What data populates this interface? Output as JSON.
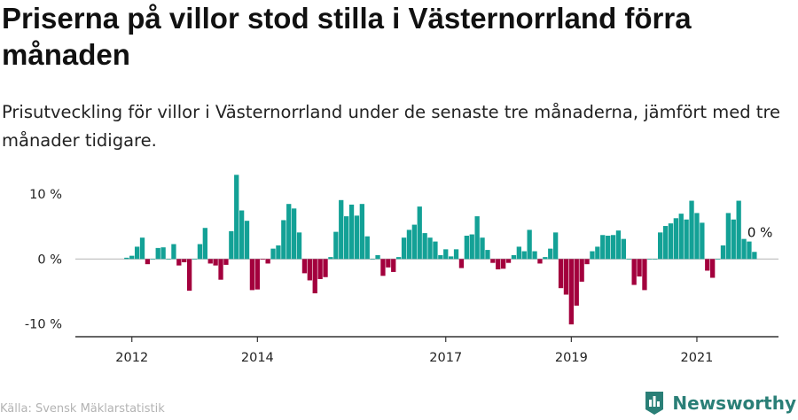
{
  "title": "Priserna på villor stod stilla i Västernorrland förra månaden",
  "subtitle": "Prisutveckling för villor i Västernorrland under de senaste tre månaderna, jämfört med tre månader tidigare.",
  "source": "Källa: Svensk Mäklarstatistik",
  "brand": {
    "name": "Newsworthy"
  },
  "colors": {
    "positive": "#13a196",
    "negative": "#a3003d",
    "axis": "#333333",
    "zero_line": "#bbbbbb"
  },
  "chart_data": {
    "type": "bar",
    "title": "Priserna på villor stod stilla i Västernorrland förra månaden",
    "xlabel": "",
    "ylabel": "",
    "ylim": [
      -12,
      14
    ],
    "y_ticks": [
      {
        "value": 10,
        "label": "10 %"
      },
      {
        "value": 0,
        "label": "0 %"
      },
      {
        "value": -10,
        "label": "-10 %"
      }
    ],
    "x_range": [
      2011.1,
      2022.3
    ],
    "x_ticks": [
      {
        "value": 2012,
        "label": "2012"
      },
      {
        "value": 2014,
        "label": "2014"
      },
      {
        "value": 2017,
        "label": "2017"
      },
      {
        "value": 2019,
        "label": "2019"
      },
      {
        "value": 2021,
        "label": "2021"
      }
    ],
    "start": {
      "year": 2011,
      "month": 12
    },
    "values": [
      0.2,
      0.5,
      1.9,
      3.3,
      -0.8,
      0,
      1.7,
      1.8,
      0,
      2.3,
      -1,
      -0.5,
      -4.9,
      0,
      2.3,
      4.8,
      -0.7,
      -1,
      -3.2,
      -0.9,
      4.3,
      13,
      7.5,
      5.9,
      -4.8,
      -4.7,
      -0.1,
      -0.7,
      1.6,
      2.1,
      6,
      8.5,
      7.8,
      4.1,
      -2.2,
      -3.3,
      -5.3,
      -3.1,
      -2.8,
      0.3,
      4.2,
      9.1,
      6.6,
      8.4,
      6.7,
      8.5,
      3.5,
      0,
      0.6,
      -2.6,
      -1.3,
      -2,
      0.3,
      3.3,
      4.5,
      5.3,
      8.1,
      4,
      3.3,
      2.7,
      0.6,
      1.5,
      0.4,
      1.5,
      -1.4,
      3.6,
      3.8,
      6.6,
      3.3,
      1.4,
      -0.6,
      -1.6,
      -1.5,
      -0.6,
      0.6,
      1.9,
      1.2,
      4.5,
      1.2,
      -0.7,
      0.3,
      1.6,
      4.1,
      -4.5,
      -5.5,
      -10.1,
      -7.2,
      -3.5,
      -0.8,
      1.2,
      1.9,
      3.7,
      3.6,
      3.7,
      4.4,
      3.1,
      0,
      -4,
      -2.7,
      -4.8,
      0,
      0,
      4.1,
      5.1,
      5.5,
      6.3,
      7,
      6.1,
      9,
      7.1,
      5.6,
      -1.8,
      -2.9,
      0,
      2.1,
      7.1,
      6.1,
      9,
      3.1,
      2.7,
      1.1
    ],
    "annotations": [
      {
        "text": "0 %"
      }
    ]
  }
}
